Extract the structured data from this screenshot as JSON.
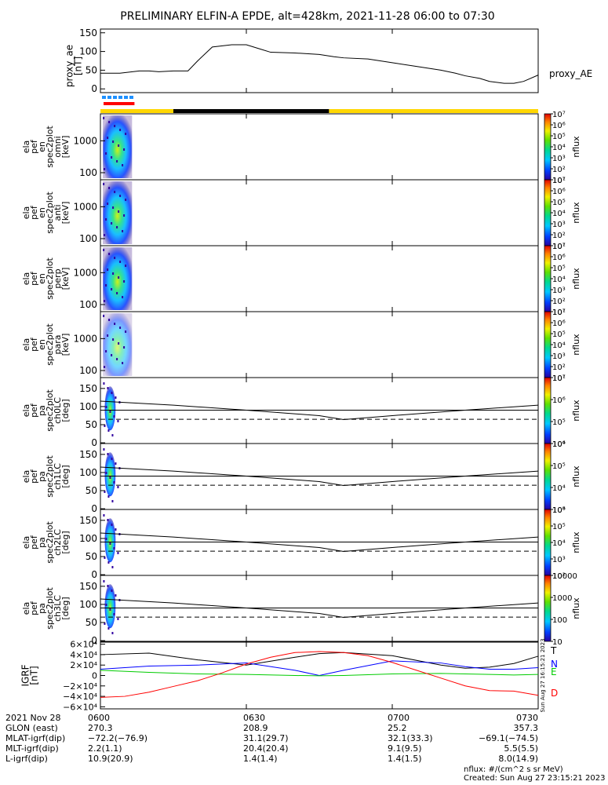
{
  "title": "PRELIMINARY ELFIN-A EPDE, alt=428km, 2021-11-28 06:00 to 07:30",
  "proxy_ae": {
    "ylabel": [
      "proxy_ae",
      "[nT]"
    ],
    "ticks": [
      "150",
      "100",
      "50",
      "0"
    ],
    "legend": "proxy_AE"
  },
  "spectro_panels": [
    {
      "ylabel": [
        "ela",
        "pef",
        "en",
        "spec2plot",
        "omni",
        "[keV]"
      ],
      "ticks": [
        "1000",
        "100"
      ]
    },
    {
      "ylabel": [
        "ela",
        "pef",
        "en",
        "spec2plot",
        "anti",
        "[keV]"
      ],
      "ticks": [
        "1000",
        "100"
      ]
    },
    {
      "ylabel": [
        "ela",
        "pef",
        "en",
        "spec2plot",
        "perp",
        "[keV]"
      ],
      "ticks": [
        "1000",
        "100"
      ]
    },
    {
      "ylabel": [
        "ela",
        "pef",
        "en",
        "spec2plot",
        "para",
        "[keV]"
      ],
      "ticks": [
        "1000",
        "100"
      ]
    }
  ],
  "pa_panels": [
    {
      "ylabel": [
        "ela",
        "pef",
        "pa",
        "spec2plot",
        "ch0LC",
        "[deg]"
      ],
      "ticks": [
        "150",
        "100",
        "50",
        "0"
      ]
    },
    {
      "ylabel": [
        "ela",
        "pef",
        "pa",
        "spec2plot",
        "ch1LC",
        "[deg]"
      ],
      "ticks": [
        "150",
        "100",
        "50",
        "0"
      ]
    },
    {
      "ylabel": [
        "ela",
        "pef",
        "pa",
        "spec2plot",
        "ch2LC",
        "[deg]"
      ],
      "ticks": [
        "150",
        "100",
        "50",
        "0"
      ]
    },
    {
      "ylabel": [
        "ela",
        "pef",
        "pa",
        "spec2plot",
        "ch3LC",
        "[deg]"
      ],
      "ticks": [
        "150",
        "100",
        "50",
        "0"
      ]
    }
  ],
  "colorbars": [
    {
      "label": "nflux",
      "ticks": [
        "10⁷",
        "10⁶",
        "10⁵",
        "10⁴",
        "10³",
        "10²",
        "10¹"
      ]
    },
    {
      "label": "nflux",
      "ticks": [
        "10⁷",
        "10⁶",
        "10⁵",
        "10⁴",
        "10³",
        "10²",
        "10¹"
      ]
    },
    {
      "label": "nflux",
      "ticks": [
        "10⁷",
        "10⁶",
        "10⁵",
        "10⁴",
        "10³",
        "10²",
        "10¹"
      ]
    },
    {
      "label": "nflux",
      "ticks": [
        "10⁷",
        "10⁶",
        "10⁵",
        "10⁴",
        "10³",
        "10²",
        "10¹"
      ]
    },
    {
      "label": "nflux",
      "ticks": [
        "10⁷",
        "10⁶",
        "10⁵",
        "10⁴"
      ]
    },
    {
      "label": "nflux",
      "ticks": [
        "10⁶",
        "10⁵",
        "10⁴",
        "10³"
      ]
    },
    {
      "label": "nflux",
      "ticks": [
        "10⁶",
        "10⁵",
        "10⁴",
        "10³",
        "10²"
      ]
    },
    {
      "label": "nflux",
      "ticks": [
        "10000",
        "1000",
        "100",
        "10"
      ]
    }
  ],
  "igrf": {
    "ylabel": [
      "IGRF",
      "[nT]"
    ],
    "ticks": [
      "6×10⁴",
      "4×10⁴",
      "2×10⁴",
      "0",
      "−2×10⁴",
      "−4×10⁴",
      "−6×10⁴"
    ],
    "legend": [
      "T",
      "N",
      "E",
      "D"
    ],
    "colors": {
      "T": "#000000",
      "N": "#0000ff",
      "E": "#00cc00",
      "D": "#ff0000"
    },
    "side_note": "Sun Aug 27 16:15:21 2023"
  },
  "xaxis": {
    "ticks": [
      "0600",
      "0630",
      "0700",
      "0730"
    ],
    "rows": [
      {
        "label": "2021 Nov 28",
        "values": [
          "0600",
          "0630",
          "0700",
          "0730"
        ]
      },
      {
        "label": "GLON (east)",
        "values": [
          "270.3",
          "208.9",
          "25.2",
          "357.3"
        ]
      },
      {
        "label": "MLAT-igrf(dip)",
        "values": [
          "−72.2(−76.9)",
          "31.1(29.7)",
          "32.1(33.3)",
          "−69.1(−74.5)"
        ]
      },
      {
        "label": "MLT-igrf(dip)",
        "values": [
          "2.2(1.1)",
          "20.4(20.4)",
          "9.1(9.5)",
          "5.5(5.5)"
        ]
      },
      {
        "label": "L-igrf(dip)",
        "values": [
          "10.9(20.9)",
          "1.4(1.4)",
          "1.4(1.5)",
          "8.0(14.9)"
        ]
      }
    ]
  },
  "footer": {
    "units": "nflux: #/(cm^2 s sr MeV)",
    "created": "Created: Sun Aug 27 23:15:21 2023"
  },
  "chart_data": {
    "type": "line",
    "title": "PRELIMINARY ELFIN-A EPDE, alt=428km, 2021-11-28 06:00 to 07:30",
    "x_range": [
      "06:00",
      "07:30"
    ],
    "x_ticks": [
      "0600",
      "0630",
      "0700",
      "0730"
    ],
    "proxy_ae": {
      "ylim": [
        0,
        150
      ],
      "series": [
        {
          "name": "proxy_AE",
          "x": [
            0,
            4,
            8,
            10,
            12,
            15,
            18,
            20,
            23,
            27,
            30,
            33,
            35,
            40,
            45,
            48,
            50,
            55,
            60,
            65,
            70,
            73,
            75,
            78,
            80,
            83,
            85,
            87,
            90
          ],
          "y": [
            42,
            42,
            48,
            48,
            46,
            48,
            48,
            75,
            112,
            118,
            118,
            106,
            98,
            96,
            92,
            86,
            83,
            80,
            70,
            60,
            50,
            42,
            35,
            28,
            20,
            15,
            15,
            20,
            37
          ]
        }
      ]
    },
    "state_bars": {
      "science_zone_minutes": [
        0,
        7
      ],
      "orbit_bar": [
        {
          "from": 0,
          "to": 15,
          "color": "#ffd700"
        },
        {
          "from": 15,
          "to": 47,
          "color": "#000000"
        },
        {
          "from": 47,
          "to": 90,
          "color": "#ffd700"
        }
      ]
    },
    "energy_spectrograms": {
      "ylim_keV": [
        60,
        7000
      ],
      "scale": "log",
      "data_minutes": [
        0.5,
        6.5
      ],
      "zlim": [
        10,
        10000000
      ],
      "names": [
        "omni",
        "anti",
        "perp",
        "para"
      ]
    },
    "pitch_angle_panels": {
      "ylim": [
        0,
        180
      ],
      "names": [
        "ch0LC",
        "ch1LC",
        "ch2LC",
        "ch3LC"
      ],
      "solid_lines": {
        "x": [
          0,
          15,
          30,
          45,
          50,
          60,
          75,
          90
        ],
        "y": [
          115,
          104,
          90,
          75,
          64,
          75,
          90,
          104
        ]
      },
      "horizontal_line": 90,
      "dashed_line": 65
    },
    "igrf": {
      "ylim": [
        -60000,
        60000
      ],
      "series": [
        {
          "name": "T",
          "x": [
            0,
            10,
            20,
            30,
            40,
            45,
            50,
            60,
            70,
            75,
            80,
            85,
            90
          ],
          "y": [
            40000,
            43000,
            30000,
            20000,
            35000,
            42000,
            44000,
            38000,
            20000,
            14000,
            16000,
            23000,
            37000
          ]
        },
        {
          "name": "N",
          "x": [
            0,
            10,
            20,
            30,
            40,
            45,
            50,
            60,
            70,
            75,
            80,
            85,
            90
          ],
          "y": [
            12000,
            18000,
            20000,
            24000,
            10000,
            0,
            10000,
            28000,
            24000,
            17000,
            12000,
            12000,
            15000
          ]
        },
        {
          "name": "E",
          "x": [
            0,
            10,
            20,
            30,
            40,
            45,
            50,
            60,
            70,
            75,
            80,
            85,
            90
          ],
          "y": [
            10000,
            6000,
            3000,
            2000,
            0,
            -500,
            0,
            3000,
            4000,
            3000,
            2000,
            1000,
            2000
          ]
        },
        {
          "name": "D",
          "x": [
            0,
            5,
            10,
            15,
            20,
            25,
            30,
            35,
            40,
            45,
            50,
            55,
            60,
            65,
            70,
            75,
            80,
            85,
            90
          ],
          "y": [
            -42000,
            -40000,
            -32000,
            -21000,
            -10000,
            5000,
            22000,
            35000,
            44000,
            46000,
            44000,
            38000,
            25000,
            10000,
            -5000,
            -20000,
            -29000,
            -30000,
            -38000
          ]
        }
      ]
    }
  }
}
